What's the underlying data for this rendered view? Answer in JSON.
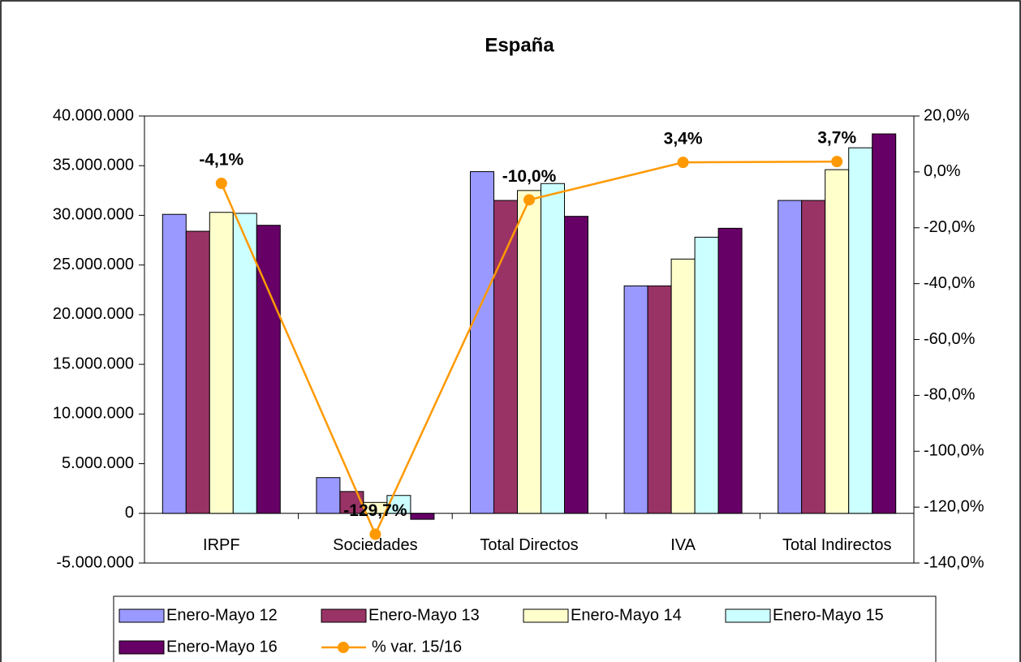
{
  "chart_data": {
    "type": "bar-line",
    "title": "España",
    "categories": [
      "IRPF",
      "Sociedades",
      "Total Directos",
      "IVA",
      "Total Indirectos"
    ],
    "series": [
      {
        "name": "Enero-Mayo 12",
        "color": "#9999ff",
        "values": [
          30100000,
          3600000,
          34400000,
          22900000,
          31500000
        ]
      },
      {
        "name": "Enero-Mayo 13",
        "color": "#993366",
        "values": [
          28400000,
          2200000,
          31500000,
          22900000,
          31500000
        ]
      },
      {
        "name": "Enero-Mayo 14",
        "color": "#ffffcc",
        "values": [
          30300000,
          1100000,
          32500000,
          25600000,
          34600000
        ]
      },
      {
        "name": "Enero-Mayo 15",
        "color": "#ccffff",
        "values": [
          30200000,
          1800000,
          33200000,
          27800000,
          36800000
        ]
      },
      {
        "name": "Enero-Mayo 16",
        "color": "#660066",
        "values": [
          29000000,
          -600000,
          29900000,
          28700000,
          38200000
        ]
      },
      {
        "name": "% var. 15/16",
        "color": "#ff9900",
        "type": "line",
        "axis": "y2",
        "values": [
          -4.1,
          -129.7,
          -10.0,
          3.4,
          3.7
        ],
        "value_labels": [
          "-4,1%",
          "-129,7%",
          "-10,0%",
          "3,4%",
          "3,7%"
        ]
      }
    ],
    "ylim": [
      -5000000,
      40000000
    ],
    "yticks": [
      {
        "value": -5000000,
        "label": "-5.000.000"
      },
      0,
      {
        "value": 5000000,
        "label": "5.000.000"
      },
      {
        "value": 10000000,
        "label": "10.000.000"
      },
      {
        "value": 15000000,
        "label": "15.000.000"
      },
      {
        "value": 20000000,
        "label": "20.000.000"
      },
      {
        "value": 25000000,
        "label": "25.000.000"
      },
      {
        "value": 30000000,
        "label": "30.000.000"
      },
      {
        "value": 35000000,
        "label": "35.000.000"
      },
      {
        "value": 40000000,
        "label": "40.000.000"
      }
    ],
    "y2lim": [
      -140,
      20
    ],
    "y2ticks": [
      {
        "value": -140,
        "label": "-140,0%"
      },
      {
        "value": -120,
        "label": "-120,0%"
      },
      {
        "value": -100,
        "label": "-100,0%"
      },
      {
        "value": -80,
        "label": "-80,0%"
      },
      {
        "value": -60,
        "label": "-60,0%"
      },
      {
        "value": -40,
        "label": "-40,0%"
      },
      {
        "value": -20,
        "label": "-20,0%"
      },
      {
        "value": 0,
        "label": "0,0%"
      },
      {
        "value": 20,
        "label": "20,0%"
      }
    ],
    "legend": "bottom"
  }
}
